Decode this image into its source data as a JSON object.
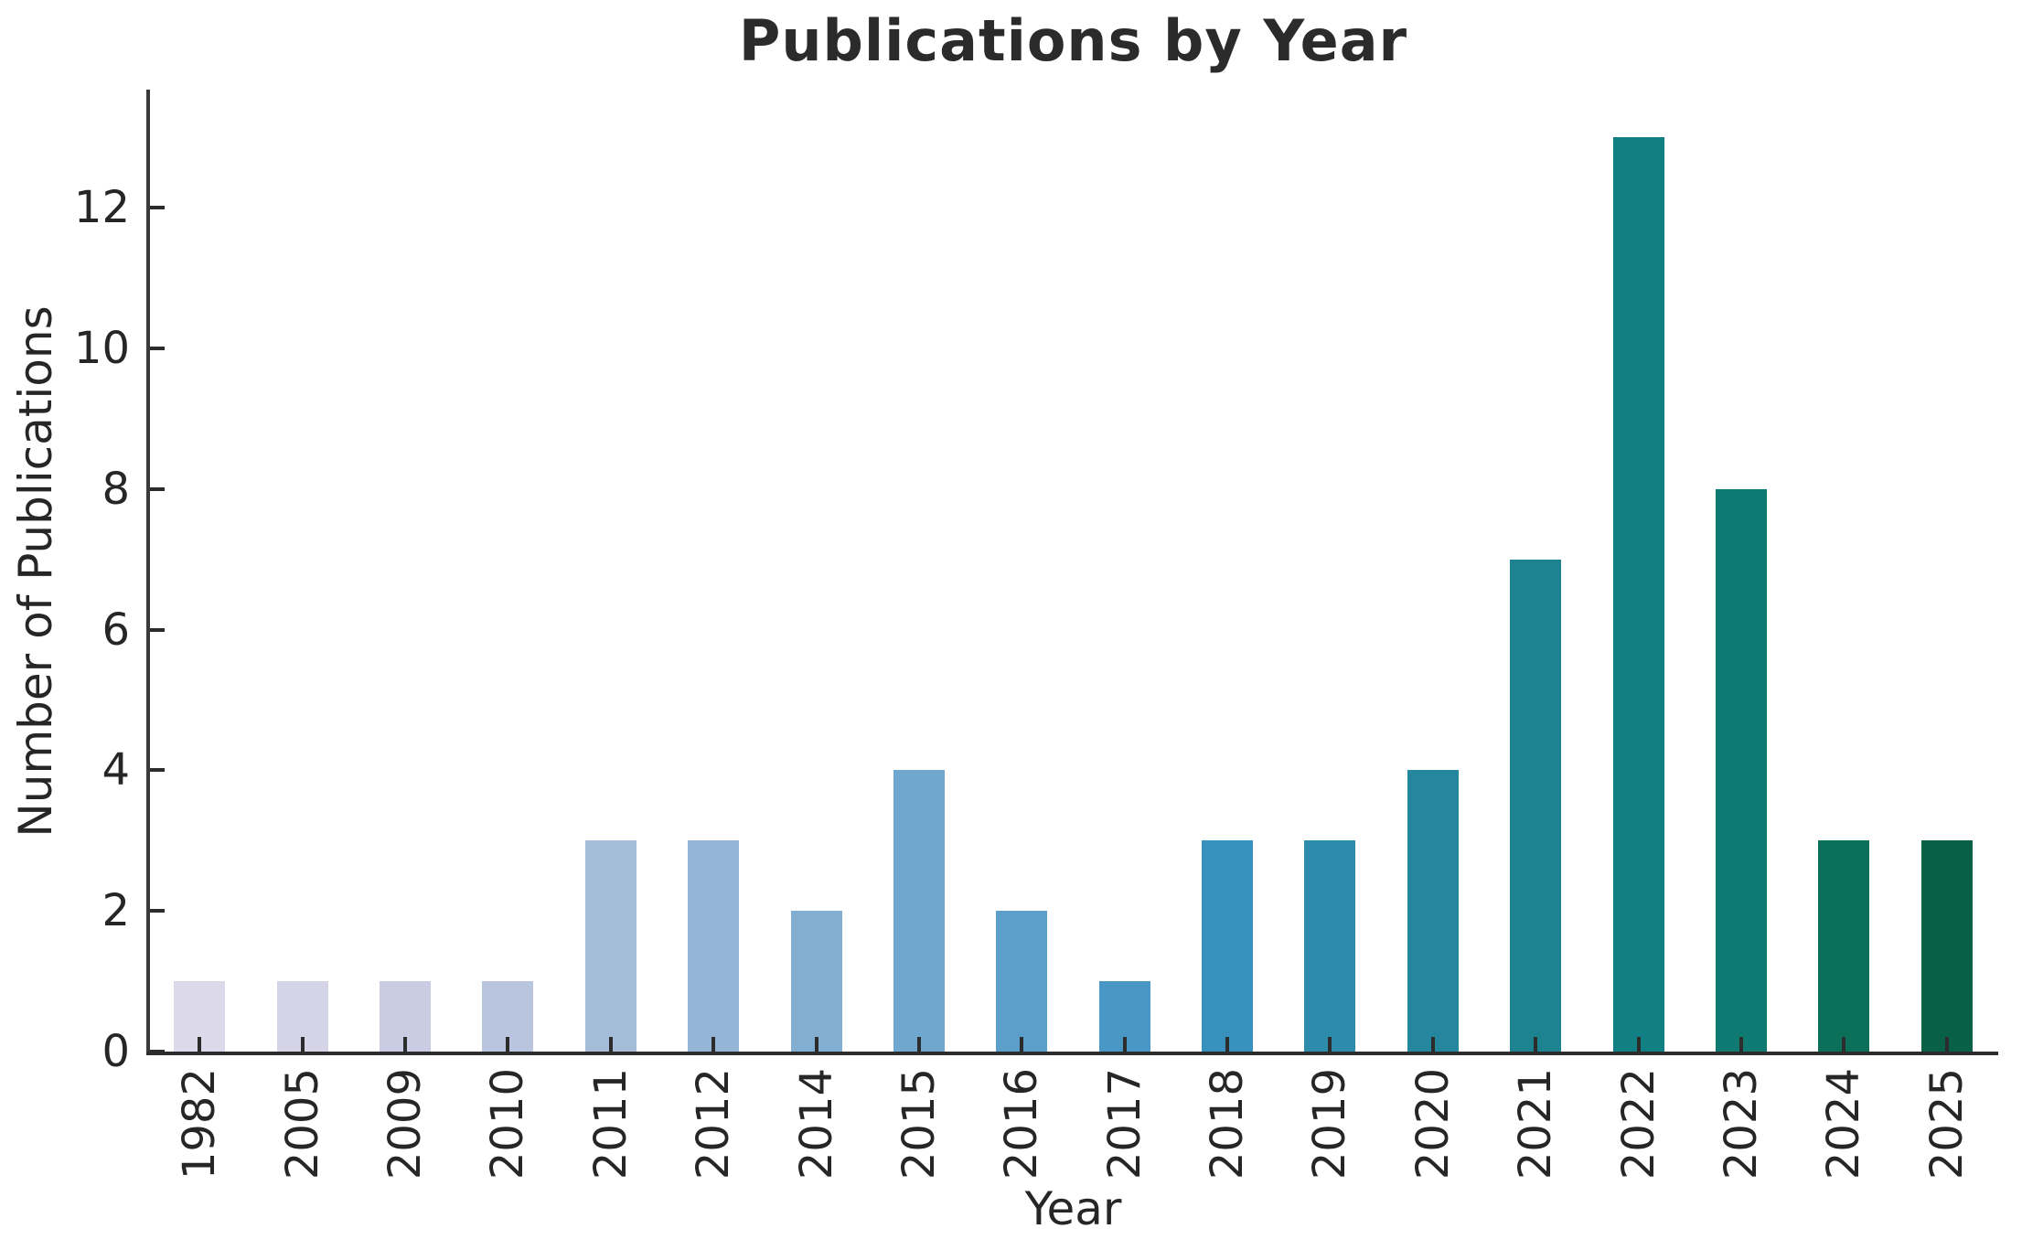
{
  "chart_data": {
    "type": "bar",
    "title": "Publications by Year",
    "xlabel": "Year",
    "ylabel": "Number of Publications",
    "categories": [
      "1982",
      "2005",
      "2009",
      "2010",
      "2011",
      "2012",
      "2014",
      "2015",
      "2016",
      "2017",
      "2018",
      "2019",
      "2020",
      "2021",
      "2022",
      "2023",
      "2024",
      "2025"
    ],
    "values": [
      1,
      1,
      1,
      1,
      3,
      3,
      2,
      4,
      2,
      1,
      3,
      3,
      4,
      7,
      13,
      8,
      3,
      3
    ],
    "bar_colors": [
      "#dcdaea",
      "#d5d4e6",
      "#c9cce2",
      "#b9c5de",
      "#a6bdda",
      "#94b5d6",
      "#82aed2",
      "#6fa7ce",
      "#5c9fca",
      "#4997c4",
      "#3890bc",
      "#2d8bac",
      "#24879d",
      "#1d8390",
      "#108083",
      "#0f7a71",
      "#0c6f59",
      "#086147"
    ],
    "yticks": [
      0,
      2,
      4,
      6,
      8,
      10,
      12
    ],
    "ylim": [
      0,
      13.68
    ],
    "grid": false,
    "legend": "none",
    "axis_color": "#2c2c2c",
    "text_color": "#262626",
    "title_color": "#2b2b2b",
    "background": "#ffffff"
  }
}
